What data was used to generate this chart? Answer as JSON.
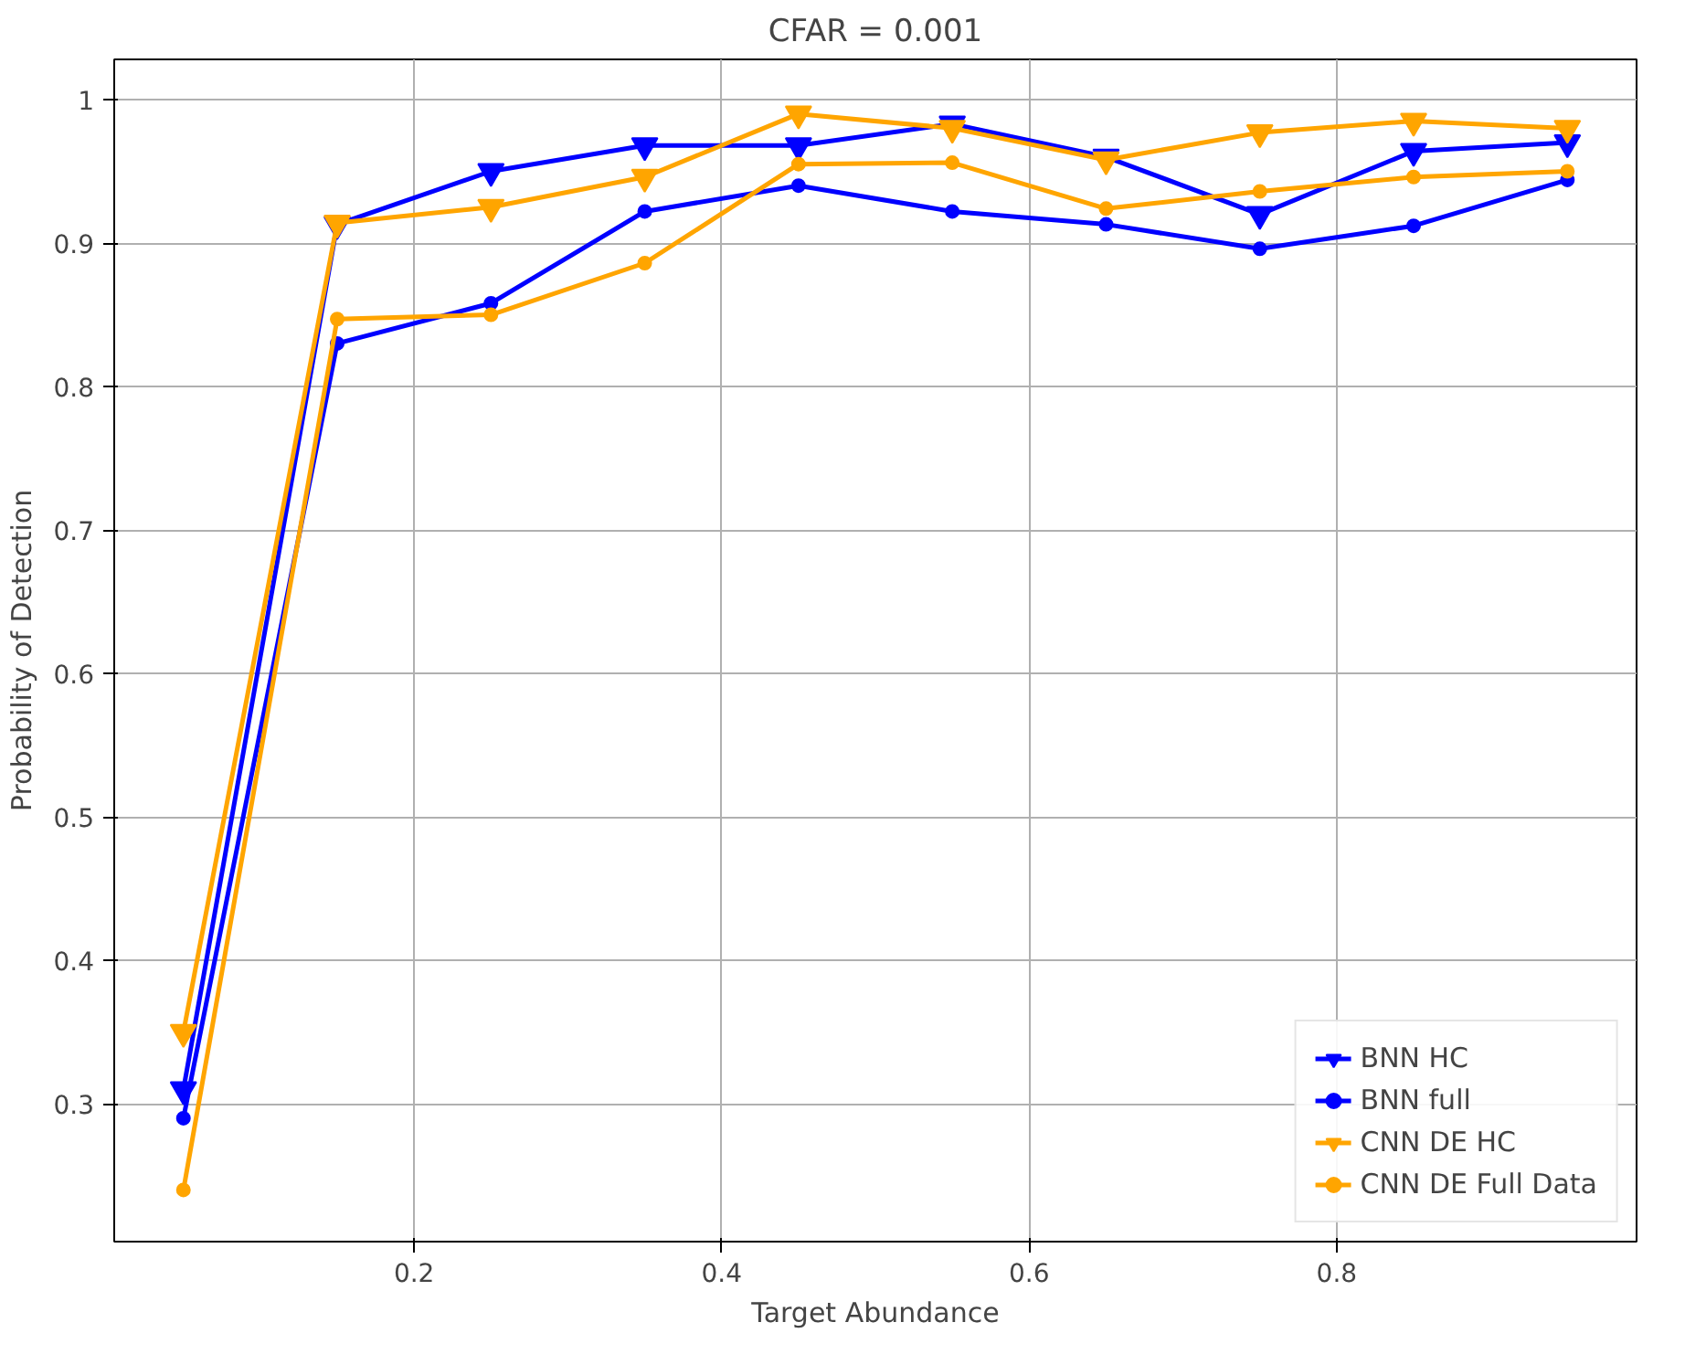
{
  "chart_data": {
    "type": "line",
    "title": "CFAR = 0.001",
    "xlabel": "Target Abundance",
    "ylabel": "Probability of Detection",
    "x": [
      0.05,
      0.15,
      0.25,
      0.35,
      0.45,
      0.55,
      0.65,
      0.75,
      0.85,
      0.95
    ],
    "series": [
      {
        "name": "BNN HC",
        "color": "#0000ff",
        "marker": "triangle",
        "values": [
          0.31,
          0.913,
          0.95,
          0.968,
          0.968,
          0.983,
          0.96,
          0.92,
          0.964,
          0.97
        ]
      },
      {
        "name": "BNN full",
        "color": "#0000ff",
        "marker": "circle",
        "values": [
          0.29,
          0.83,
          0.858,
          0.922,
          0.94,
          0.922,
          0.913,
          0.896,
          0.912,
          0.944
        ]
      },
      {
        "name": "CNN DE HC",
        "color": "#ffa500",
        "marker": "triangle",
        "values": [
          0.35,
          0.914,
          0.925,
          0.946,
          0.99,
          0.98,
          0.958,
          0.977,
          0.985,
          0.98
        ]
      },
      {
        "name": "CNN DE Full Data",
        "color": "#ffa500",
        "marker": "circle",
        "values": [
          0.24,
          0.847,
          0.85,
          0.886,
          0.955,
          0.956,
          0.924,
          0.936,
          0.946,
          0.95
        ]
      }
    ],
    "xlim": [
      0.005,
      0.995
    ],
    "ylim": [
      0.204,
      1.028
    ],
    "xticks": [
      0.2,
      0.4,
      0.6,
      0.8
    ],
    "yticks": [
      0.3,
      0.4,
      0.5,
      0.6,
      0.7,
      0.8,
      0.9,
      1.0
    ],
    "grid": true,
    "legend": "bottom right"
  }
}
